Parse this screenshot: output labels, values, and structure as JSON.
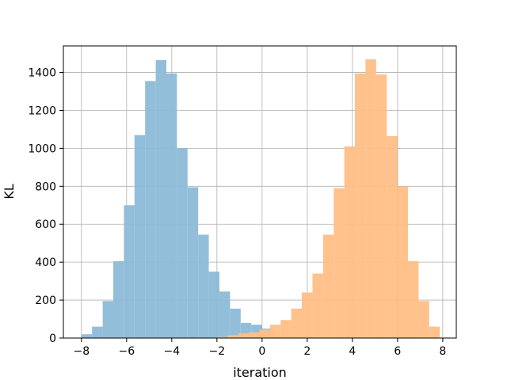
{
  "chart_data": {
    "type": "bar",
    "title": "",
    "xlabel": "iteration",
    "ylabel": "KL",
    "xlim": [
      -8.8,
      8.6
    ],
    "ylim": [
      0,
      1540
    ],
    "xticks": [
      -8,
      -6,
      -4,
      -2,
      0,
      2,
      4,
      6,
      8
    ],
    "xtick_labels": [
      "−8",
      "−6",
      "−4",
      "−2",
      "0",
      "2",
      "4",
      "6",
      "8"
    ],
    "yticks": [
      0,
      200,
      400,
      600,
      800,
      1000,
      1200,
      1400
    ],
    "ytick_labels": [
      "0",
      "200",
      "400",
      "600",
      "800",
      "1000",
      "1200",
      "1400"
    ],
    "grid": true,
    "series": [
      {
        "color": "#8dbad8",
        "bins": [
          [
            -8.0,
            -7.53,
            20
          ],
          [
            -7.53,
            -7.06,
            60
          ],
          [
            -7.06,
            -6.59,
            195
          ],
          [
            -6.59,
            -6.12,
            405
          ],
          [
            -6.12,
            -5.65,
            700
          ],
          [
            -5.65,
            -5.18,
            1070
          ],
          [
            -5.18,
            -4.71,
            1355
          ],
          [
            -4.71,
            -4.24,
            1465
          ],
          [
            -4.24,
            -3.77,
            1395
          ],
          [
            -3.77,
            -3.3,
            1000
          ],
          [
            -3.3,
            -2.83,
            795
          ],
          [
            -2.83,
            -2.36,
            545
          ],
          [
            -2.36,
            -1.89,
            350
          ],
          [
            -1.89,
            -1.42,
            245
          ],
          [
            -1.42,
            -0.95,
            155
          ],
          [
            -0.95,
            -0.48,
            80
          ],
          [
            -0.48,
            -0.01,
            70
          ],
          [
            -0.01,
            0.46,
            50
          ],
          [
            0.46,
            0.93,
            15
          ],
          [
            0.93,
            1.4,
            8
          ]
        ]
      },
      {
        "color": "#ffbf86",
        "bins": [
          [
            -2.0,
            -1.53,
            5
          ],
          [
            -1.53,
            -1.06,
            15
          ],
          [
            -1.06,
            -0.59,
            25
          ],
          [
            -0.59,
            -0.12,
            30
          ],
          [
            -0.12,
            0.35,
            45
          ],
          [
            0.35,
            0.82,
            70
          ],
          [
            0.82,
            1.29,
            95
          ],
          [
            1.29,
            1.76,
            155
          ],
          [
            1.76,
            2.23,
            240
          ],
          [
            2.23,
            2.7,
            340
          ],
          [
            2.7,
            3.17,
            545
          ],
          [
            3.17,
            3.64,
            790
          ],
          [
            3.64,
            4.11,
            1010
          ],
          [
            4.11,
            4.58,
            1395
          ],
          [
            4.58,
            5.05,
            1470
          ],
          [
            5.05,
            5.52,
            1390
          ],
          [
            5.52,
            5.99,
            1065
          ],
          [
            5.99,
            6.46,
            800
          ],
          [
            6.46,
            6.93,
            405
          ],
          [
            6.93,
            7.4,
            195
          ],
          [
            7.4,
            7.87,
            60
          ]
        ]
      }
    ]
  }
}
